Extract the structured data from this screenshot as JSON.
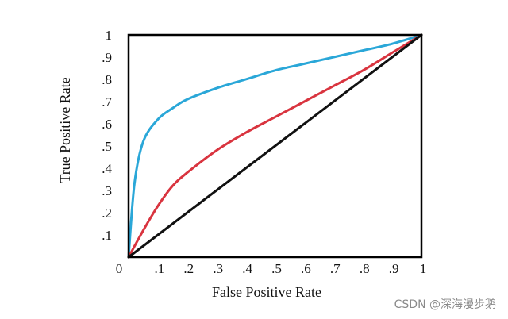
{
  "chart_data": {
    "type": "line",
    "xlabel": "False Positive Rate",
    "ylabel": "True Positive Rate",
    "xlim": [
      0,
      1
    ],
    "ylim": [
      0,
      1
    ],
    "x_ticks": [
      {
        "value": 0,
        "label": "0"
      },
      {
        "value": 0.1,
        "label": ".1"
      },
      {
        "value": 0.2,
        "label": ".2"
      },
      {
        "value": 0.3,
        "label": ".3"
      },
      {
        "value": 0.4,
        "label": ".4"
      },
      {
        "value": 0.5,
        "label": ".5"
      },
      {
        "value": 0.6,
        "label": ".6"
      },
      {
        "value": 0.7,
        "label": ".7"
      },
      {
        "value": 0.8,
        "label": ".8"
      },
      {
        "value": 0.9,
        "label": ".9"
      },
      {
        "value": 1,
        "label": "1"
      }
    ],
    "y_ticks": [
      {
        "value": 0.1,
        "label": ".1"
      },
      {
        "value": 0.2,
        "label": ".2"
      },
      {
        "value": 0.3,
        "label": ".3"
      },
      {
        "value": 0.4,
        "label": ".4"
      },
      {
        "value": 0.5,
        "label": ".5"
      },
      {
        "value": 0.6,
        "label": ".6"
      },
      {
        "value": 0.7,
        "label": ".7"
      },
      {
        "value": 0.8,
        "label": ".8"
      },
      {
        "value": 0.9,
        "label": ".9"
      },
      {
        "value": 1,
        "label": "1"
      }
    ],
    "grid": false,
    "legend": null,
    "series": [
      {
        "color": "#2aa7d8",
        "x": [
          0,
          0.02,
          0.05,
          0.1,
          0.15,
          0.2,
          0.3,
          0.4,
          0.5,
          0.6,
          0.7,
          0.8,
          0.9,
          1.0
        ],
        "y": [
          0,
          0.33,
          0.52,
          0.62,
          0.67,
          0.71,
          0.76,
          0.8,
          0.84,
          0.87,
          0.9,
          0.93,
          0.96,
          1.0
        ]
      },
      {
        "color": "#d9343f",
        "x": [
          0,
          0.05,
          0.1,
          0.15,
          0.2,
          0.3,
          0.4,
          0.5,
          0.6,
          0.7,
          0.8,
          0.9,
          1.0
        ],
        "y": [
          0,
          0.12,
          0.23,
          0.32,
          0.38,
          0.48,
          0.56,
          0.63,
          0.7,
          0.77,
          0.84,
          0.92,
          1.0
        ]
      },
      {
        "color": "#111111",
        "x": [
          0,
          1
        ],
        "y": [
          0,
          1
        ]
      }
    ]
  },
  "watermark": "CSDN @深海漫步鹅"
}
